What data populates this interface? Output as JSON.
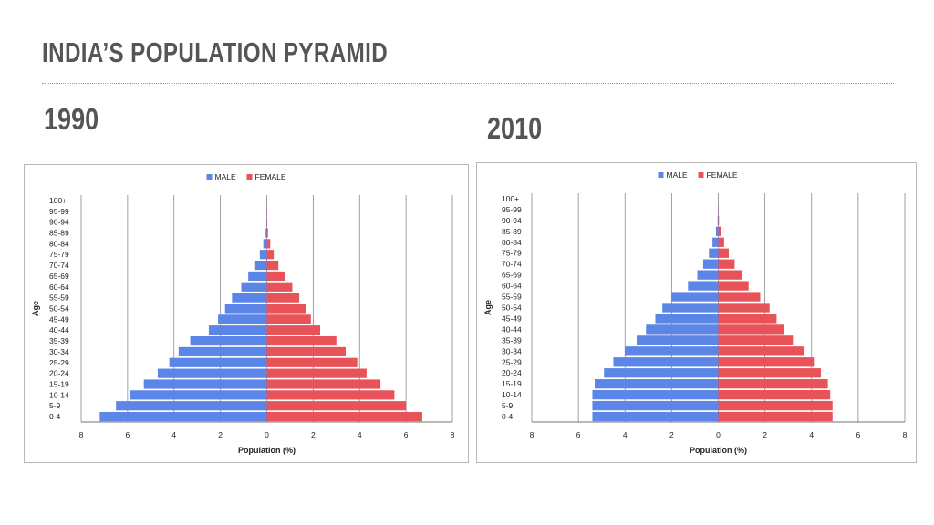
{
  "slide": {
    "title": "INDIA’S POPULATION PYRAMID"
  },
  "colors": {
    "male": "#5b86e8",
    "female": "#e8535a",
    "grid": "#8a8a8a"
  },
  "chart_data": [
    {
      "type": "bar",
      "orientation": "horizontal-population-pyramid",
      "title": "1990",
      "categories": [
        "0-4",
        "5-9",
        "10-14",
        "15-19",
        "20-24",
        "25-29",
        "30-34",
        "35-39",
        "40-44",
        "45-49",
        "50-54",
        "55-59",
        "60-64",
        "65-69",
        "70-74",
        "75-79",
        "80-84",
        "85-89",
        "90-94",
        "95-99",
        "100+"
      ],
      "series": [
        {
          "name": "MALE",
          "values": [
            7.2,
            6.5,
            5.9,
            5.3,
            4.7,
            4.2,
            3.8,
            3.3,
            2.5,
            2.1,
            1.8,
            1.5,
            1.1,
            0.8,
            0.5,
            0.3,
            0.15,
            0.05,
            0.02,
            0.01,
            0.0
          ]
        },
        {
          "name": "FEMALE",
          "values": [
            6.7,
            6.0,
            5.5,
            4.9,
            4.3,
            3.9,
            3.4,
            3.0,
            2.3,
            1.9,
            1.7,
            1.4,
            1.1,
            0.8,
            0.5,
            0.3,
            0.15,
            0.05,
            0.02,
            0.01,
            0.0
          ]
        }
      ],
      "xlabel": "Population (%)",
      "ylabel": "Age",
      "xlim": [
        -8,
        8
      ],
      "xticks": [
        "8",
        "6",
        "4",
        "2",
        "0",
        "2",
        "4",
        "6",
        "8"
      ],
      "legend": "top-center",
      "grid": true
    },
    {
      "type": "bar",
      "orientation": "horizontal-population-pyramid",
      "title": "2010",
      "categories": [
        "0-4",
        "5-9",
        "10-14",
        "15-19",
        "20-24",
        "25-29",
        "30-34",
        "35-39",
        "40-44",
        "45-49",
        "50-54",
        "55-59",
        "60-64",
        "65-69",
        "70-74",
        "75-79",
        "80-84",
        "85-89",
        "90-94",
        "95-99",
        "100+"
      ],
      "series": [
        {
          "name": "MALE",
          "values": [
            5.4,
            5.4,
            5.4,
            5.3,
            4.9,
            4.5,
            4.0,
            3.5,
            3.1,
            2.7,
            2.4,
            2.0,
            1.3,
            0.9,
            0.65,
            0.4,
            0.25,
            0.1,
            0.03,
            0.01,
            0.0
          ]
        },
        {
          "name": "FEMALE",
          "values": [
            4.9,
            4.9,
            4.8,
            4.7,
            4.4,
            4.1,
            3.7,
            3.2,
            2.8,
            2.5,
            2.2,
            1.8,
            1.3,
            1.0,
            0.7,
            0.45,
            0.25,
            0.1,
            0.03,
            0.01,
            0.0
          ]
        }
      ],
      "xlabel": "Population (%)",
      "ylabel": "Age",
      "xlim": [
        -8,
        8
      ],
      "xticks": [
        "8",
        "6",
        "4",
        "2",
        "0",
        "2",
        "4",
        "6",
        "8"
      ],
      "legend": "top-center",
      "grid": true
    }
  ]
}
